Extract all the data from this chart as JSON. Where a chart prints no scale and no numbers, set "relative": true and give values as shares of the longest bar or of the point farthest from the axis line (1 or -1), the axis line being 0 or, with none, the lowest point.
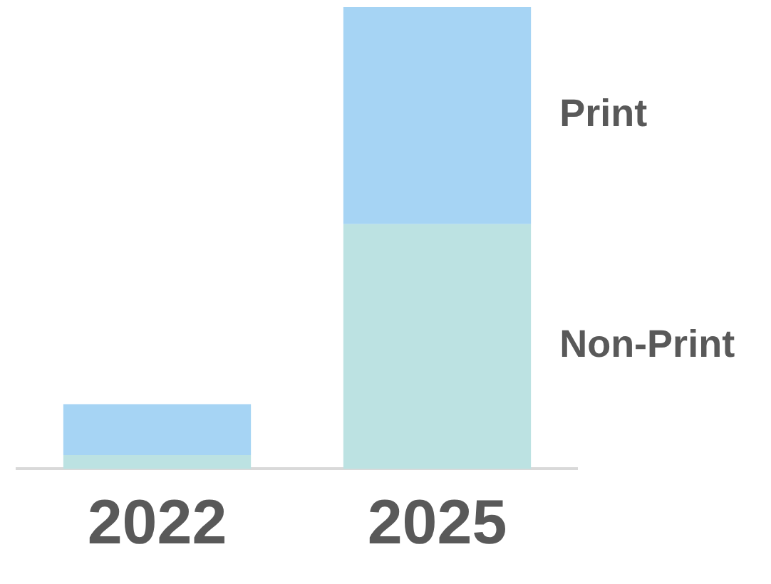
{
  "chart_data": {
    "type": "bar",
    "stacked": true,
    "relative": true,
    "legend": false,
    "grid": false,
    "categories": [
      "2022",
      "2025"
    ],
    "series": [
      {
        "name": "Non-Print",
        "color": "#bce2e2",
        "values": [
          0.03,
          0.53
        ]
      },
      {
        "name": "Print",
        "color": "#a6d4f4",
        "values": [
          0.11,
          0.47
        ]
      }
    ]
  }
}
